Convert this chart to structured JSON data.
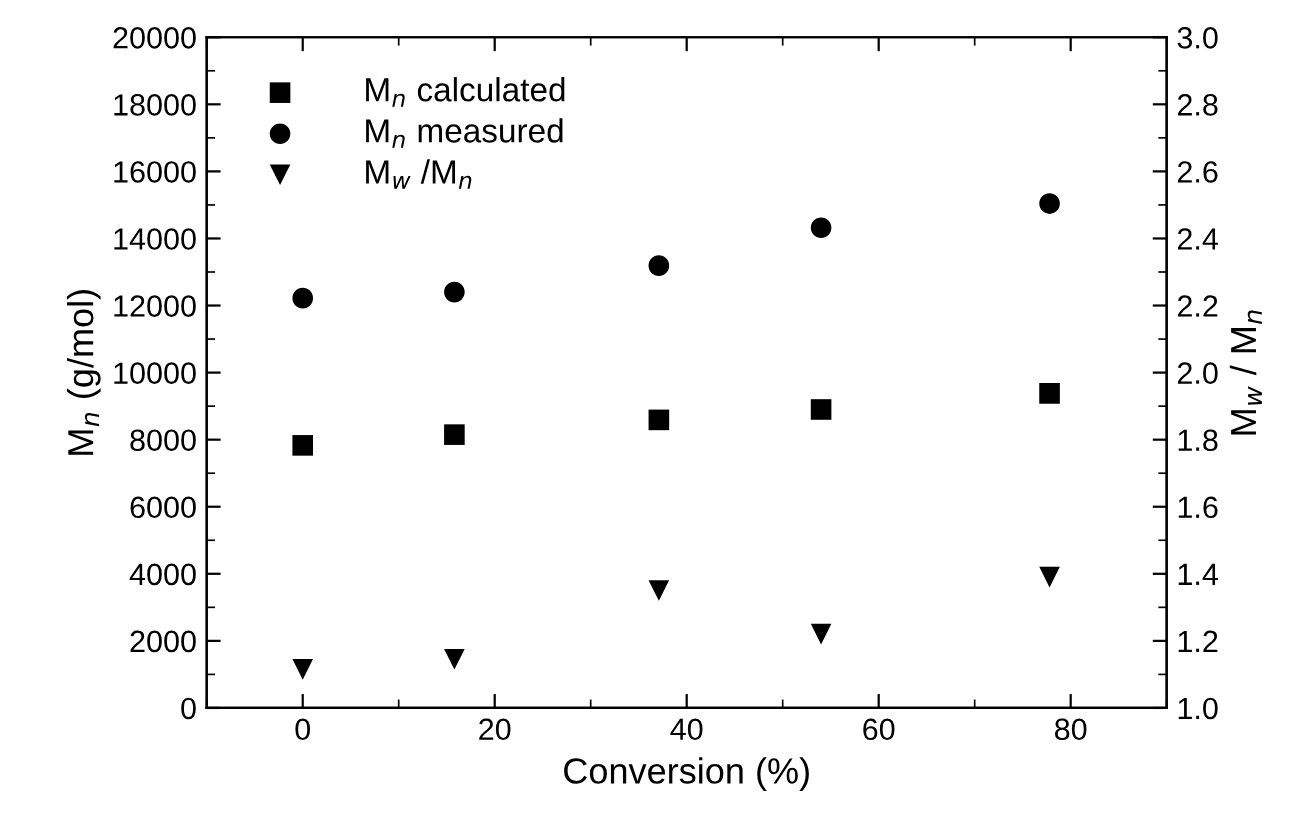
{
  "chart_data": {
    "type": "scatter",
    "xlabel": "Conversion (%)",
    "ylabel": "M$_{n}$ (g/mol)",
    "y2label": "M$_{w}$ / M$_{n}$",
    "x": [
      0,
      15.8,
      37.1,
      54,
      77.8
    ],
    "xlim": [
      -10,
      90
    ],
    "xticks": [
      0,
      20,
      40,
      60,
      80
    ],
    "ylim": [
      0,
      20000
    ],
    "yticks": [
      0,
      2000,
      4000,
      6000,
      8000,
      10000,
      12000,
      14000,
      16000,
      18000,
      20000
    ],
    "y2lim": [
      1.0,
      3.0
    ],
    "y2ticks": [
      {
        "value": 1.0,
        "label": "1.0"
      },
      {
        "value": 1.2,
        "label": "1.2"
      },
      {
        "value": 1.4,
        "label": "1.4"
      },
      {
        "value": 1.6,
        "label": "1.6"
      },
      {
        "value": 1.8,
        "label": "1.8"
      },
      {
        "value": 2.0,
        "label": "2.0"
      },
      {
        "value": 2.2,
        "label": "2.2"
      },
      {
        "value": 2.4,
        "label": "2.4"
      },
      {
        "value": 2.6,
        "label": "2.6"
      },
      {
        "value": 2.8,
        "label": "2.8"
      },
      {
        "value": 3.0,
        "label": "3.0"
      }
    ],
    "legend": "top left",
    "grid": false,
    "series": [
      {
        "name": "M$_{n}$ calculated",
        "color": "#000000",
        "marker": "square",
        "values": [
          7830,
          8150,
          8590,
          8900,
          9380
        ]
      },
      {
        "name": "M$_{n}$ measured",
        "color": "#000000",
        "marker": "circle",
        "values": [
          12220,
          12400,
          13190,
          14320,
          15040
        ]
      },
      {
        "name": "M$_{w}$ /M$_{n}$",
        "color": "#000000",
        "marker": "triangle",
        "axis": "y2",
        "values": [
          1.115,
          1.145,
          1.35,
          1.22,
          1.39
        ]
      }
    ]
  }
}
